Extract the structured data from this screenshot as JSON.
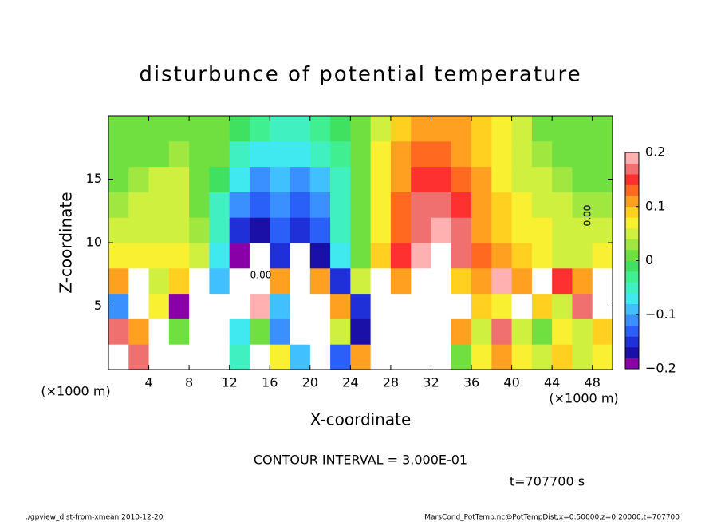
{
  "chart_data": {
    "type": "heatmap",
    "title": "disturbunce of potential temperature",
    "xlabel": "X-coordinate",
    "ylabel": "Z-coordinate",
    "x_unit": "(×1000 m)",
    "y_unit": "(×1000 m)",
    "xlim": [
      0,
      50
    ],
    "ylim": [
      0,
      20
    ],
    "xticks": [
      4,
      8,
      12,
      16,
      20,
      24,
      28,
      32,
      36,
      40,
      44,
      48
    ],
    "yticks": [
      5,
      10,
      15
    ],
    "x": [
      1,
      3,
      5,
      7,
      9,
      11,
      13,
      15,
      17,
      19,
      21,
      23,
      25,
      27,
      29,
      31,
      33,
      35,
      37,
      39,
      41,
      43,
      45,
      47,
      49
    ],
    "y": [
      1,
      3,
      5,
      7,
      9,
      11,
      13,
      15,
      17,
      19
    ],
    "values": [
      [
        0.3,
        0.16,
        0.3,
        0.3,
        0.3,
        0.3,
        -0.06,
        0.3,
        0.06,
        -0.1,
        0.3,
        -0.14,
        0.12,
        0.3,
        0.3,
        0.3,
        0.3,
        0.02,
        0.06,
        0.12,
        0.06,
        0.04,
        0.08,
        0.04,
        0.06
      ],
      [
        0.16,
        0.12,
        0.3,
        0.0,
        0.3,
        0.3,
        -0.08,
        0.02,
        -0.12,
        0.3,
        0.3,
        0.04,
        -0.18,
        0.3,
        0.3,
        0.3,
        0.3,
        0.1,
        0.05,
        0.16,
        0.04,
        0.0,
        0.06,
        0.04,
        0.08
      ],
      [
        -0.12,
        0.3,
        0.06,
        -0.2,
        0.3,
        0.3,
        0.3,
        0.18,
        -0.1,
        0.3,
        0.3,
        0.1,
        -0.15,
        0.3,
        0.3,
        0.3,
        0.3,
        0.3,
        0.08,
        0.06,
        0.3,
        0.08,
        0.04,
        0.16,
        0.3
      ],
      [
        0.12,
        0.3,
        0.05,
        0.08,
        0.3,
        -0.1,
        0.3,
        0.3,
        0.1,
        0.3,
        0.12,
        -0.15,
        0.05,
        0.3,
        0.1,
        0.3,
        0.3,
        0.08,
        0.12,
        0.2,
        0.1,
        0.3,
        0.15,
        0.1,
        0.3
      ],
      [
        0.06,
        0.07,
        0.07,
        0.06,
        0.04,
        -0.08,
        -0.19,
        -0.25,
        -0.16,
        -0.21,
        -0.18,
        -0.08,
        0.02,
        0.08,
        0.14,
        0.18,
        0.25,
        0.17,
        0.13,
        0.1,
        0.08,
        0.06,
        0.05,
        0.05,
        0.06
      ],
      [
        0.04,
        0.05,
        0.05,
        0.05,
        0.03,
        -0.05,
        -0.15,
        -0.17,
        -0.14,
        -0.16,
        -0.14,
        -0.06,
        0.0,
        0.06,
        0.13,
        0.17,
        0.19,
        0.16,
        0.12,
        0.09,
        0.07,
        0.06,
        0.05,
        0.04,
        0.04
      ],
      [
        0.03,
        0.04,
        0.05,
        0.04,
        0.02,
        -0.04,
        -0.12,
        -0.14,
        -0.12,
        -0.13,
        -0.11,
        -0.05,
        0.0,
        0.06,
        0.13,
        0.16,
        0.17,
        0.14,
        0.11,
        0.08,
        0.06,
        0.05,
        0.04,
        0.03,
        0.03
      ],
      [
        0.02,
        0.03,
        0.04,
        0.04,
        0.02,
        -0.02,
        -0.08,
        -0.11,
        -0.1,
        -0.11,
        -0.09,
        -0.04,
        0.0,
        0.06,
        0.12,
        0.15,
        0.15,
        0.13,
        0.1,
        0.07,
        0.05,
        0.04,
        0.03,
        0.02,
        0.02
      ],
      [
        0.02,
        0.02,
        0.02,
        0.03,
        0.02,
        0.0,
        -0.04,
        -0.07,
        -0.08,
        -0.08,
        -0.06,
        -0.03,
        0.01,
        0.06,
        0.1,
        0.13,
        0.13,
        0.11,
        0.08,
        0.06,
        0.04,
        0.03,
        0.02,
        0.02,
        0.02
      ],
      [
        0.02,
        0.02,
        0.02,
        0.02,
        0.02,
        0.01,
        -0.01,
        -0.03,
        -0.04,
        -0.04,
        -0.03,
        -0.02,
        0.01,
        0.05,
        0.09,
        0.11,
        0.11,
        0.1,
        0.08,
        0.06,
        0.04,
        0.02,
        0.02,
        0.02,
        0.02
      ]
    ],
    "clim": [
      -0.2,
      0.2
    ],
    "colors": [
      "#8a00a8",
      "#1a10a8",
      "#2030d8",
      "#2a60f8",
      "#3a90ff",
      "#40c0ff",
      "#40e8f0",
      "#40f0c0",
      "#40f090",
      "#40e060",
      "#70e040",
      "#a0e840",
      "#d0f040",
      "#f8f030",
      "#ffd020",
      "#ffa020",
      "#ff6a20",
      "#ff3030",
      "#f07070",
      "#ffb0b0"
    ],
    "out_of_range_color": "#ffffff",
    "cticks": [
      {
        "value": 0.2,
        "label": "0.2"
      },
      {
        "value": 0.1,
        "label": "0.1"
      },
      0,
      {
        "value": -0.1,
        "label": "−0.1"
      },
      {
        "value": -0.2,
        "label": "−0.2"
      }
    ],
    "contour_labels": [
      "0.00",
      "0.00"
    ],
    "contour_interval": "CONTOUR INTERVAL = 3.000E-01",
    "time": "t=707700 s",
    "footer_left": "./gpview_dist-from-xmean  2010-12-20",
    "footer_right": "MarsCond_PotTemp.nc@PotTempDist,x=0:50000,z=0:20000,t=707700"
  }
}
